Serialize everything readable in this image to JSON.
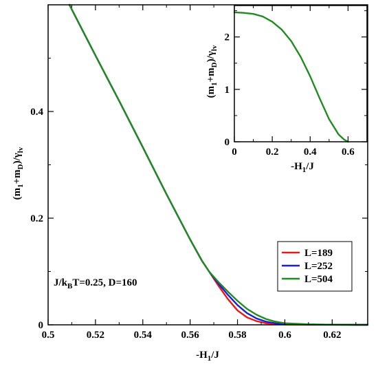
{
  "chart_data": [
    {
      "type": "line",
      "panel": "main",
      "xlabel_parts": [
        "-H",
        "1",
        "/J"
      ],
      "ylabel_parts": [
        "(m",
        "1",
        "+m",
        "D",
        ")/γ",
        "lv"
      ],
      "xlim": [
        0.5,
        0.635
      ],
      "ylim": [
        0,
        0.6
      ],
      "xticks": [
        "0.5",
        "0.52",
        "0.54",
        "0.56",
        "0.58",
        "0.6",
        "0.62"
      ],
      "xtick_values": [
        0.5,
        0.52,
        0.54,
        0.56,
        0.58,
        0.6,
        0.62
      ],
      "yticks": [
        "0",
        "0.2",
        "0.4"
      ],
      "ytick_values": [
        0,
        0.2,
        0.4
      ],
      "annotation_parts": [
        "J/k",
        "B",
        "T=0.25, D=160"
      ],
      "legend_position": "lower-right",
      "series": [
        {
          "name": "L=189",
          "color": "#e41a1c",
          "x": [
            0.509,
            0.52,
            0.53,
            0.54,
            0.55,
            0.56,
            0.565,
            0.568,
            0.572,
            0.576,
            0.58,
            0.584,
            0.588,
            0.592,
            0.596,
            0.6,
            0.61,
            0.62,
            0.63,
            0.635
          ],
          "y": [
            0.6,
            0.505,
            0.42,
            0.333,
            0.245,
            0.16,
            0.12,
            0.1,
            0.073,
            0.048,
            0.027,
            0.014,
            0.007,
            0.003,
            0.0015,
            0.0008,
            0.0003,
            0.0001,
            0.0,
            0.0
          ]
        },
        {
          "name": "L=252",
          "color": "#1f1fc8",
          "x": [
            0.509,
            0.52,
            0.53,
            0.54,
            0.55,
            0.56,
            0.565,
            0.568,
            0.572,
            0.576,
            0.58,
            0.584,
            0.588,
            0.592,
            0.596,
            0.6,
            0.61,
            0.62,
            0.63,
            0.635
          ],
          "y": [
            0.6,
            0.505,
            0.42,
            0.333,
            0.245,
            0.16,
            0.12,
            0.1,
            0.077,
            0.056,
            0.037,
            0.022,
            0.012,
            0.006,
            0.003,
            0.0015,
            0.0005,
            0.0002,
            0.0,
            0.0
          ]
        },
        {
          "name": "L=504",
          "color": "#1e8c1e",
          "x": [
            0.509,
            0.52,
            0.53,
            0.54,
            0.55,
            0.56,
            0.565,
            0.568,
            0.572,
            0.576,
            0.58,
            0.584,
            0.588,
            0.592,
            0.596,
            0.6,
            0.61,
            0.62,
            0.63,
            0.635
          ],
          "y": [
            0.6,
            0.505,
            0.42,
            0.333,
            0.245,
            0.16,
            0.12,
            0.1,
            0.08,
            0.062,
            0.045,
            0.03,
            0.019,
            0.011,
            0.006,
            0.003,
            0.001,
            0.0003,
            0.0001,
            0.0
          ]
        }
      ]
    },
    {
      "type": "line",
      "panel": "inset",
      "xlabel_parts": [
        "-H",
        "1",
        "/J"
      ],
      "ylabel_parts": [
        "(m",
        "1",
        "+m",
        "D",
        ")/γ",
        "lv"
      ],
      "xlim": [
        0,
        0.7
      ],
      "ylim": [
        0,
        2.6
      ],
      "xticks": [
        "0",
        "0.2",
        "0.4",
        "0.6"
      ],
      "xtick_values": [
        0,
        0.2,
        0.4,
        0.6
      ],
      "yticks": [
        "0",
        "1",
        "2"
      ],
      "ytick_values": [
        0,
        1,
        2
      ],
      "series": [
        {
          "color": "#1e8c1e",
          "x": [
            0.0,
            0.05,
            0.1,
            0.15,
            0.2,
            0.25,
            0.3,
            0.35,
            0.4,
            0.45,
            0.5,
            0.55,
            0.58,
            0.6
          ],
          "y": [
            2.47,
            2.46,
            2.44,
            2.39,
            2.29,
            2.14,
            1.92,
            1.62,
            1.25,
            0.83,
            0.43,
            0.14,
            0.04,
            0.0
          ]
        }
      ]
    }
  ]
}
